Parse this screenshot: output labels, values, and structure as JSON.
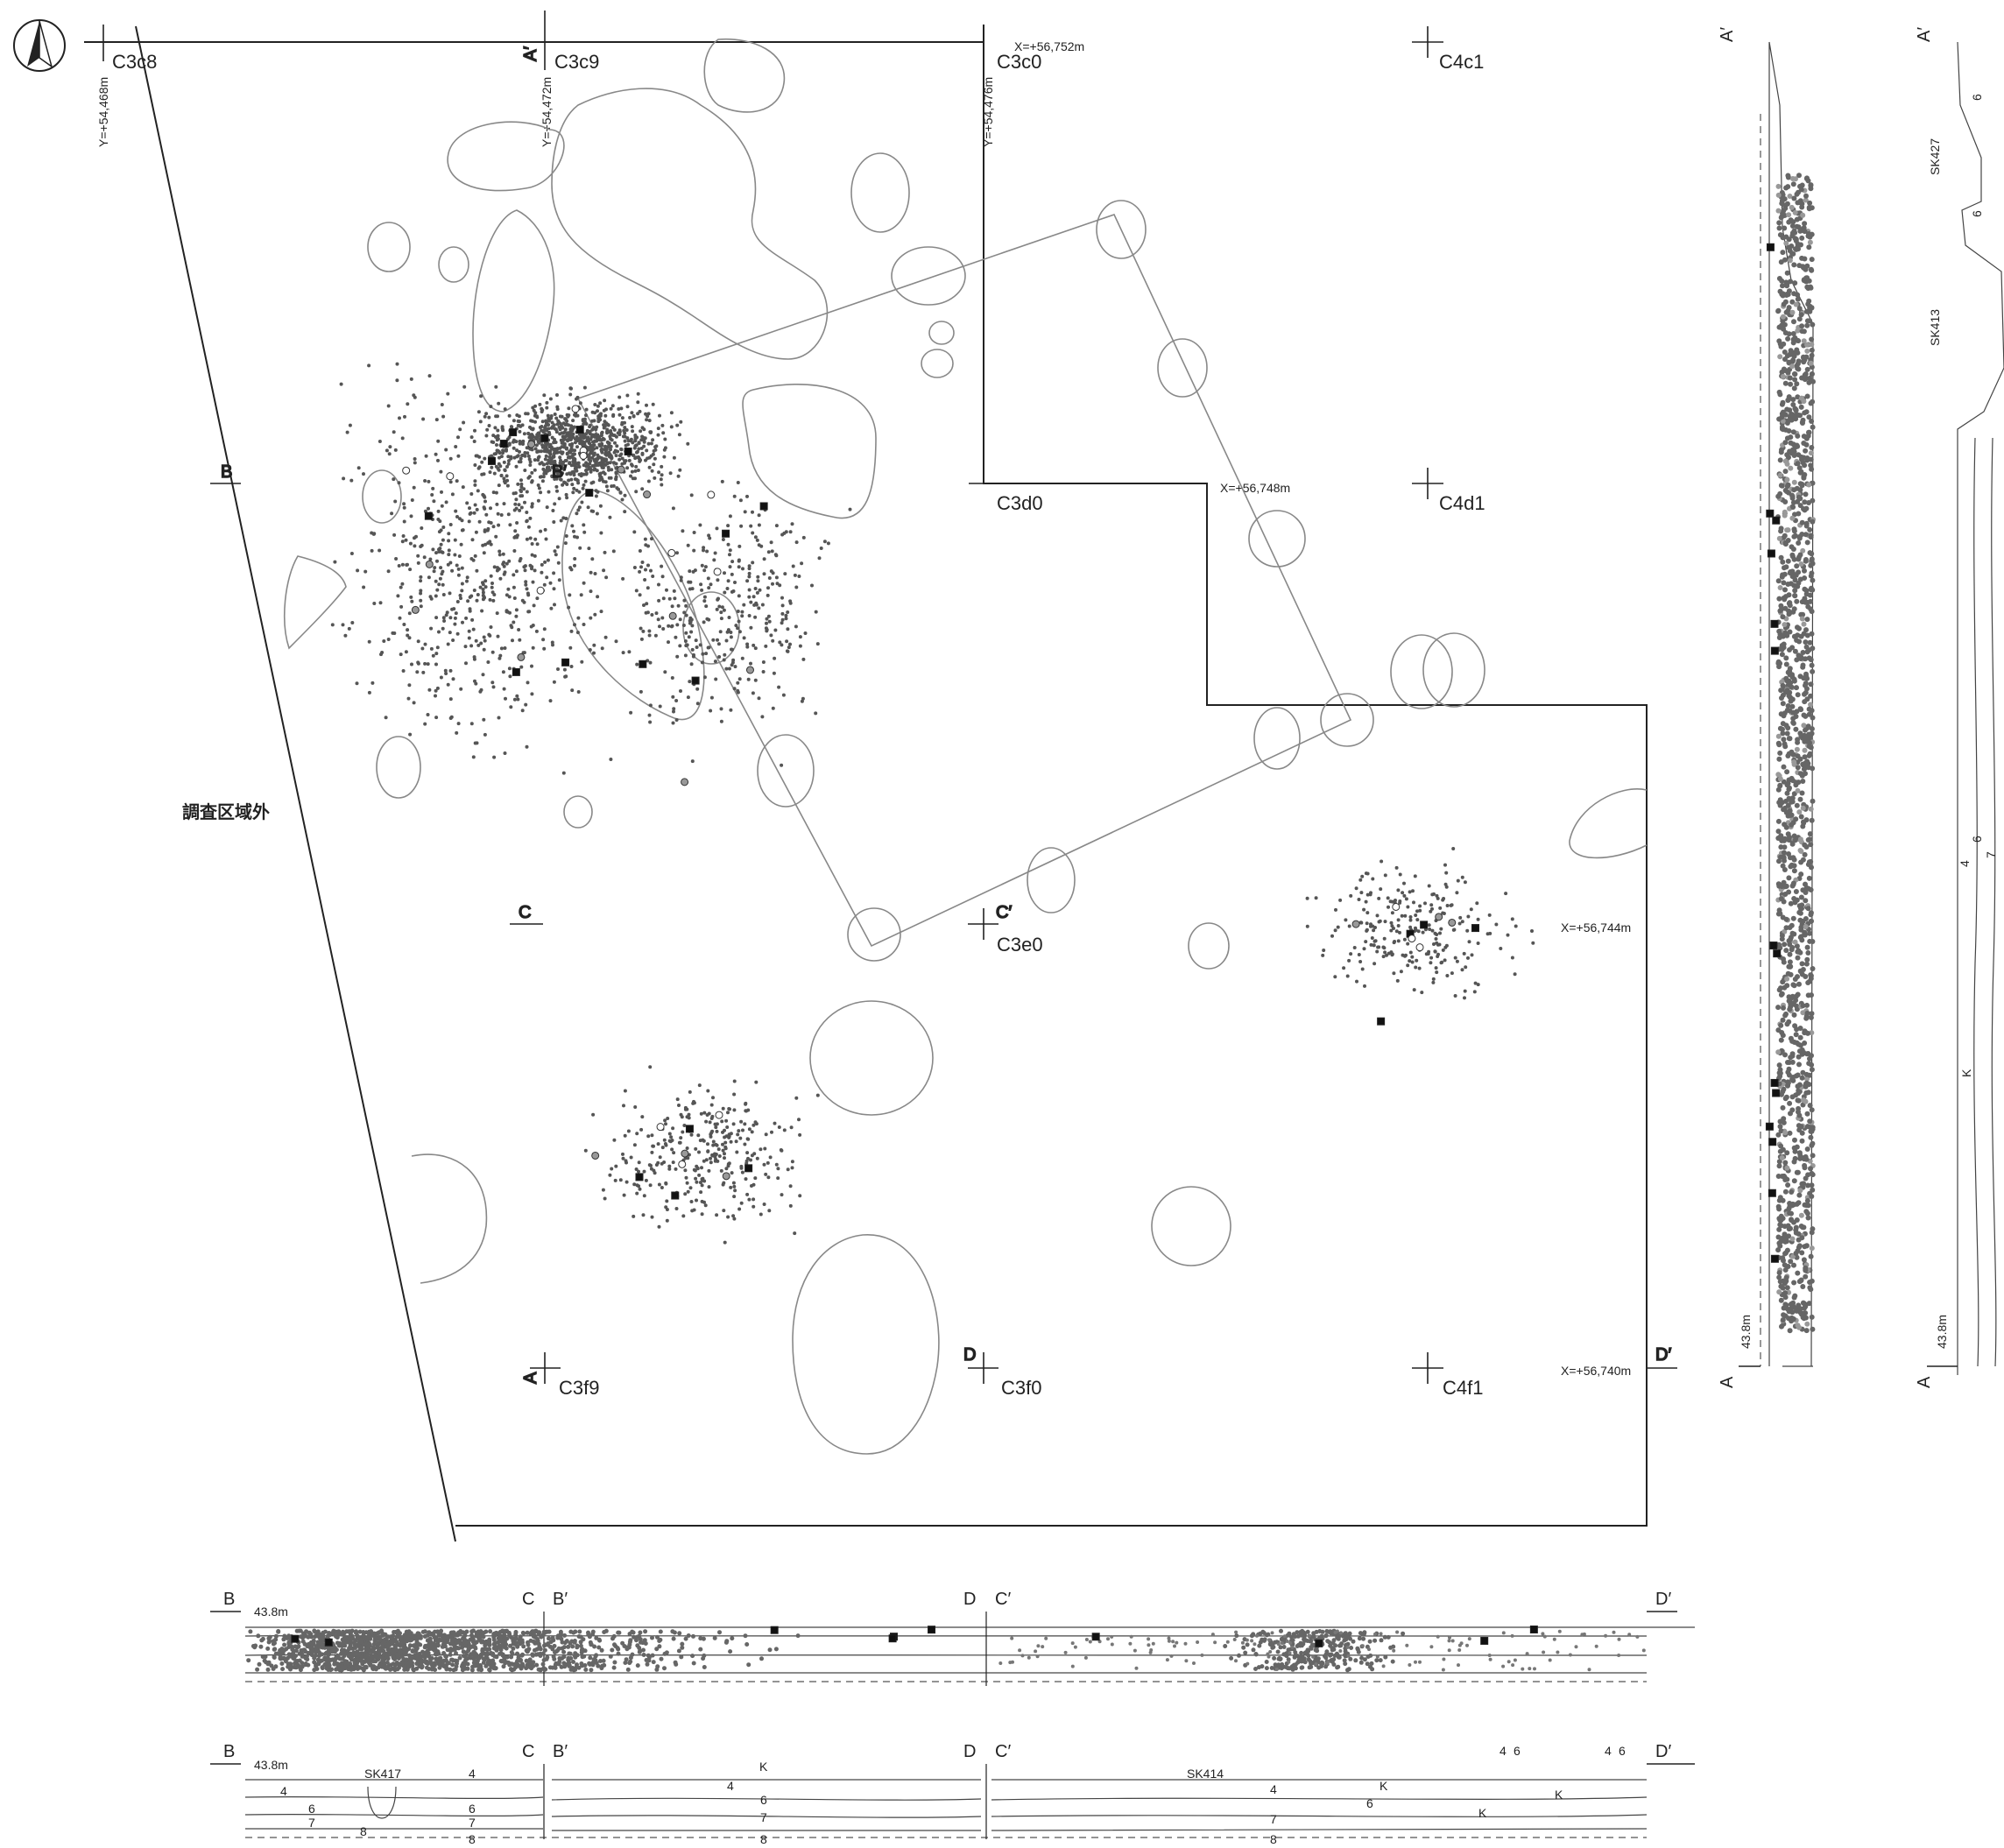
{
  "north_arrow": {
    "icon": "north-arrow-icon"
  },
  "grid_labels": {
    "c3c8": "C3c8",
    "c3c9": "C3c9",
    "c3c0": "C3c0",
    "c4c1": "C4c1",
    "c3d0": "C3d0",
    "c4d1": "C4d1",
    "c3e0": "C3e0",
    "c3f9": "C3f9",
    "c3f0": "C3f0",
    "c4f1": "C4f1"
  },
  "coordinates": {
    "y_468": "Y=+54,468m",
    "y_472": "Y=+54,472m",
    "y_476": "Y=+54,476m",
    "x_752": "X=+56,752m",
    "x_748": "X=+56,748m",
    "x_744": "X=+56,744m",
    "x_740": "X=+56,740m"
  },
  "outside_area_label": "調査区域外",
  "section_markers": {
    "a": "A",
    "a_prime": "A′",
    "b": "B",
    "b_prime": "B′",
    "c": "C",
    "c_prime": "C′",
    "d": "D",
    "d_prime": "D′"
  },
  "elevation": "43.8m",
  "features": {
    "sk413": "SK413",
    "sk414": "SK414",
    "sk417": "SK417",
    "sk427": "SK427"
  },
  "layers": {
    "l4": "4",
    "l6": "6",
    "l7": "7",
    "l8": "8",
    "k": "K"
  }
}
